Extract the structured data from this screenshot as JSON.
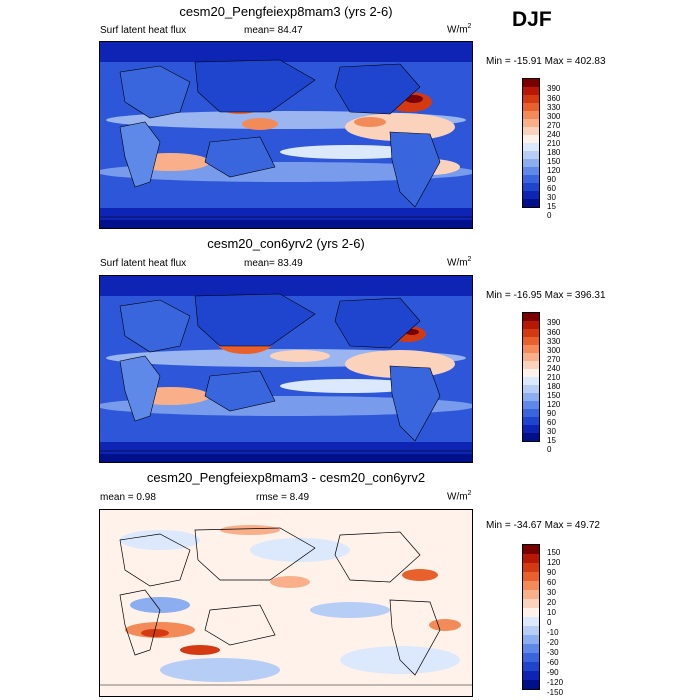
{
  "season": "DJF",
  "panels": [
    {
      "title": "cesm20_Pengfeiexp8mam3 (yrs 2-6)",
      "left_label": "Surf latent heat flux",
      "center_label": "mean=  84.47",
      "units_base": "W/m",
      "units_exp": "2",
      "minmax": "Min = -15.91 Max = 402.83",
      "colorbar": {
        "ticks": [
          "390",
          "360",
          "330",
          "300",
          "270",
          "240",
          "210",
          "180",
          "150",
          "120",
          "90",
          "60",
          "30",
          "15",
          "0"
        ],
        "colors": [
          "#7a0000",
          "#b71804",
          "#d43a12",
          "#e8602c",
          "#f38b58",
          "#f9b08a",
          "#fbd3bd",
          "#fff2ea",
          "#dce8fb",
          "#b6cdf6",
          "#8cadf0",
          "#5f89e8",
          "#3a66dd",
          "#1f45cf",
          "#0d24b4",
          "#000f8a"
        ]
      }
    },
    {
      "title": "cesm20_con6yrv2 (yrs 2-6)",
      "left_label": "Surf latent heat flux",
      "center_label": "mean=  83.49",
      "units_base": "W/m",
      "units_exp": "2",
      "minmax": "Min = -16.95 Max = 396.31",
      "colorbar": {
        "ticks": [
          "390",
          "360",
          "330",
          "300",
          "270",
          "240",
          "210",
          "180",
          "150",
          "120",
          "90",
          "60",
          "30",
          "15",
          "0"
        ],
        "colors": [
          "#7a0000",
          "#b71804",
          "#d43a12",
          "#e8602c",
          "#f38b58",
          "#f9b08a",
          "#fbd3bd",
          "#fff2ea",
          "#dce8fb",
          "#b6cdf6",
          "#8cadf0",
          "#5f89e8",
          "#3a66dd",
          "#1f45cf",
          "#0d24b4",
          "#000f8a"
        ]
      }
    },
    {
      "title": "cesm20_Pengfeiexp8mam3 - cesm20_con6yrv2",
      "left_label": "mean =   0.98",
      "center_label": "rmse =   8.49",
      "units_base": "W/m",
      "units_exp": "2",
      "minmax": "Min = -34.67 Max =  49.72",
      "colorbar": {
        "ticks": [
          "150",
          "120",
          "90",
          "60",
          "30",
          "20",
          "10",
          "0",
          "-10",
          "-20",
          "-30",
          "-60",
          "-90",
          "-120",
          "-150"
        ],
        "colors": [
          "#7a0000",
          "#b71804",
          "#d43a12",
          "#e8602c",
          "#f38b58",
          "#f9b08a",
          "#fbd3bd",
          "#fff2ea",
          "#dce8fb",
          "#b6cdf6",
          "#8cadf0",
          "#5f89e8",
          "#3a66dd",
          "#1f45cf",
          "#0d24b4",
          "#000f8a"
        ]
      }
    }
  ]
}
